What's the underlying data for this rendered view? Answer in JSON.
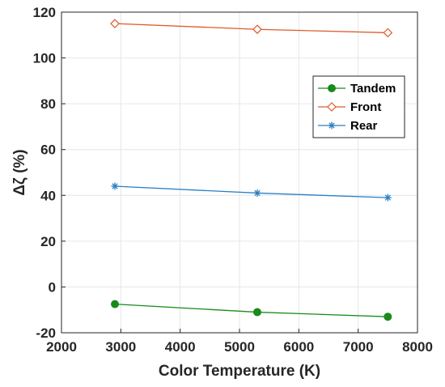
{
  "chart_data": {
    "type": "line",
    "xlabel": "Color Temperature (K)",
    "ylabel": "Δζ (%)",
    "xlim": [
      2000,
      8000
    ],
    "ylim": [
      -20,
      120
    ],
    "xticks": [
      2000,
      3000,
      4000,
      5000,
      6000,
      7000,
      8000
    ],
    "yticks": [
      -20,
      0,
      20,
      40,
      60,
      80,
      100,
      120
    ],
    "xtick_labels": [
      "2000",
      "3000",
      "4000",
      "5000",
      "6000",
      "7000",
      "8000"
    ],
    "ytick_labels": [
      "-20",
      "0",
      "20",
      "40",
      "60",
      "80",
      "100",
      "120"
    ],
    "grid": true,
    "legend_position": "right",
    "series": [
      {
        "name": "Tandem",
        "color": "#1a8a1a",
        "marker": "filled-circle",
        "x": [
          2900,
          5300,
          7500
        ],
        "values": [
          -7.5,
          -11,
          -13
        ]
      },
      {
        "name": "Front",
        "color": "#e05a2b",
        "marker": "open-diamond",
        "x": [
          2900,
          5300,
          7500
        ],
        "values": [
          115,
          112.5,
          111
        ]
      },
      {
        "name": "Rear",
        "color": "#2a7fc4",
        "marker": "asterisk",
        "x": [
          2900,
          5300,
          7500
        ],
        "values": [
          44,
          41,
          39
        ]
      }
    ]
  }
}
